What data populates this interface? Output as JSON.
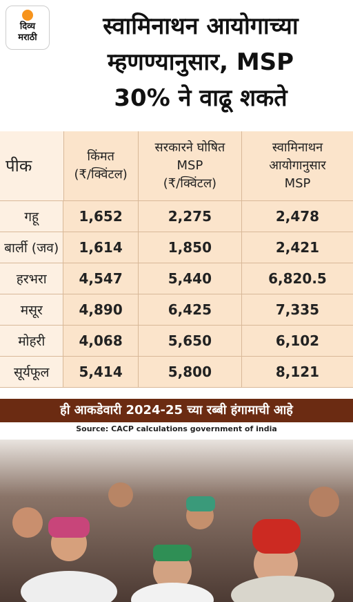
{
  "header": {
    "logo": [
      "दिव्य",
      "मराठी"
    ],
    "title": [
      "स्वामिनाथन आयोगाच्या",
      "म्हणण्यानुसार, MSP",
      "30% ने वाढू शकते"
    ]
  },
  "table": {
    "columns": [
      [
        "पीक"
      ],
      [
        "किंमत",
        "(₹/क्विंटल)"
      ],
      [
        "सरकारने घोषित",
        "MSP",
        "(₹/क्विंटल)"
      ],
      [
        "स्वामिनाथन",
        "आयोगानुसार",
        "MSP"
      ]
    ],
    "rows": [
      [
        "गहू",
        "1,652",
        "2,275",
        "2,478"
      ],
      [
        "बार्ली (जव)",
        "1,614",
        "1,850",
        "2,421"
      ],
      [
        "हरभरा",
        "4,547",
        "5,440",
        "6,820.5"
      ],
      [
        "मसूर",
        "4,890",
        "6,425",
        "7,335"
      ],
      [
        "मोहरी",
        "4,068",
        "5,650",
        "6,102"
      ],
      [
        "सूर्यफूल",
        "5,414",
        "5,800",
        "8,121"
      ]
    ]
  },
  "banner": "ही आकडेवारी 2024-25 च्या रब्बी हंगामाची आहे",
  "source": "Source: CACP calculations government of india"
}
